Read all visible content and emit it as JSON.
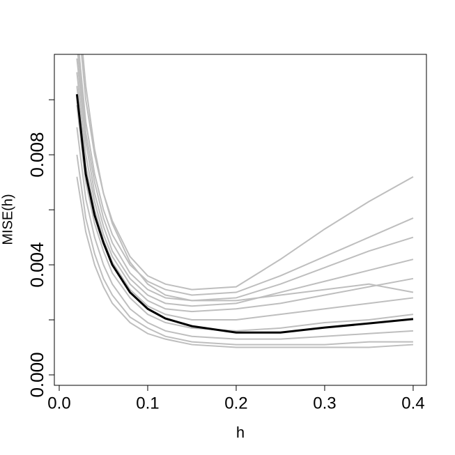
{
  "chart_data": {
    "type": "line",
    "xlabel": "h",
    "ylabel": "MISE(h)",
    "xlim": [
      -0.0055,
      0.415
    ],
    "ylim": [
      -0.00038,
      0.01165
    ],
    "xticks": [
      {
        "value": 0,
        "label": "0.0"
      },
      {
        "value": 0.1,
        "label": "0.1"
      },
      {
        "value": 0.2,
        "label": "0.2"
      },
      {
        "value": 0.3,
        "label": "0.3"
      },
      {
        "value": 0.4,
        "label": "0.4"
      }
    ],
    "yticks": [
      {
        "value": 0,
        "label": "0.000"
      },
      {
        "value": 0.002,
        "label": null
      },
      {
        "value": 0.004,
        "label": "0.004"
      },
      {
        "value": 0.006,
        "label": null
      },
      {
        "value": 0.008,
        "label": "0.008"
      },
      {
        "value": 0.01,
        "label": null
      }
    ],
    "x": [
      0.02,
      0.03,
      0.04,
      0.05,
      0.06,
      0.08,
      0.1,
      0.12,
      0.15,
      0.2,
      0.25,
      0.3,
      0.35,
      0.4
    ],
    "series": [
      {
        "color": "#bebebe",
        "values": [
          0.0135,
          0.01,
          0.008,
          0.0066,
          0.0056,
          0.0043,
          0.0036,
          0.0033,
          0.0031,
          0.0032,
          0.0042,
          0.0053,
          0.0063,
          0.0072
        ]
      },
      {
        "color": "#bebebe",
        "values": [
          0.0125,
          0.0092,
          0.0073,
          0.006,
          0.0051,
          0.004,
          0.0034,
          0.0031,
          0.0029,
          0.003,
          0.0036,
          0.0043,
          0.005,
          0.0057
        ]
      },
      {
        "color": "#bebebe",
        "values": [
          0.012,
          0.0088,
          0.007,
          0.0057,
          0.0048,
          0.0037,
          0.0031,
          0.0028,
          0.0027,
          0.0028,
          0.0033,
          0.0039,
          0.0045,
          0.005
        ]
      },
      {
        "color": "#bebebe",
        "values": [
          0.0115,
          0.0085,
          0.0066,
          0.0054,
          0.0045,
          0.0035,
          0.0029,
          0.0026,
          0.0025,
          0.0026,
          0.003,
          0.0034,
          0.0038,
          0.0042
        ]
      },
      {
        "color": "#bebebe",
        "values": [
          0.011,
          0.008,
          0.0063,
          0.0051,
          0.0043,
          0.0033,
          0.0027,
          0.0024,
          0.0023,
          0.0024,
          0.0026,
          0.0029,
          0.0032,
          0.0035
        ]
      },
      {
        "color": "#bebebe",
        "values": [
          0.014,
          0.0105,
          0.0082,
          0.0066,
          0.0055,
          0.0041,
          0.0033,
          0.0029,
          0.0027,
          0.0027,
          0.0029,
          0.0031,
          0.0033,
          0.003
        ]
      },
      {
        "color": "#bebebe",
        "values": [
          0.0105,
          0.0076,
          0.006,
          0.0049,
          0.0041,
          0.0031,
          0.0025,
          0.0022,
          0.002,
          0.002,
          0.0022,
          0.0024,
          0.0026,
          0.0028
        ]
      },
      {
        "color": "#bebebe",
        "values": [
          0.0098,
          0.007,
          0.0055,
          0.0045,
          0.0037,
          0.0028,
          0.0022,
          0.0019,
          0.0017,
          0.0016,
          0.0017,
          0.0019,
          0.002,
          0.0022
        ]
      },
      {
        "color": "#bebebe",
        "values": [
          0.009,
          0.0064,
          0.005,
          0.004,
          0.0033,
          0.0024,
          0.0019,
          0.0016,
          0.0014,
          0.0013,
          0.0013,
          0.0014,
          0.0015,
          0.0016
        ]
      },
      {
        "color": "#bebebe",
        "values": [
          0.008,
          0.0057,
          0.0044,
          0.0035,
          0.0029,
          0.0021,
          0.0017,
          0.0014,
          0.0012,
          0.0011,
          0.0011,
          0.0011,
          0.0012,
          0.0012
        ]
      },
      {
        "color": "#bebebe",
        "values": [
          0.0072,
          0.0052,
          0.004,
          0.0032,
          0.0026,
          0.0019,
          0.0015,
          0.0013,
          0.0011,
          0.001,
          0.001,
          0.001,
          0.001,
          0.0011
        ]
      },
      {
        "color": "#000000",
        "values": [
          0.0102,
          0.0073,
          0.0058,
          0.0048,
          0.004,
          0.003,
          0.0024,
          0.00205,
          0.00177,
          0.00154,
          0.00154,
          0.00172,
          0.00187,
          0.00203
        ]
      }
    ]
  }
}
